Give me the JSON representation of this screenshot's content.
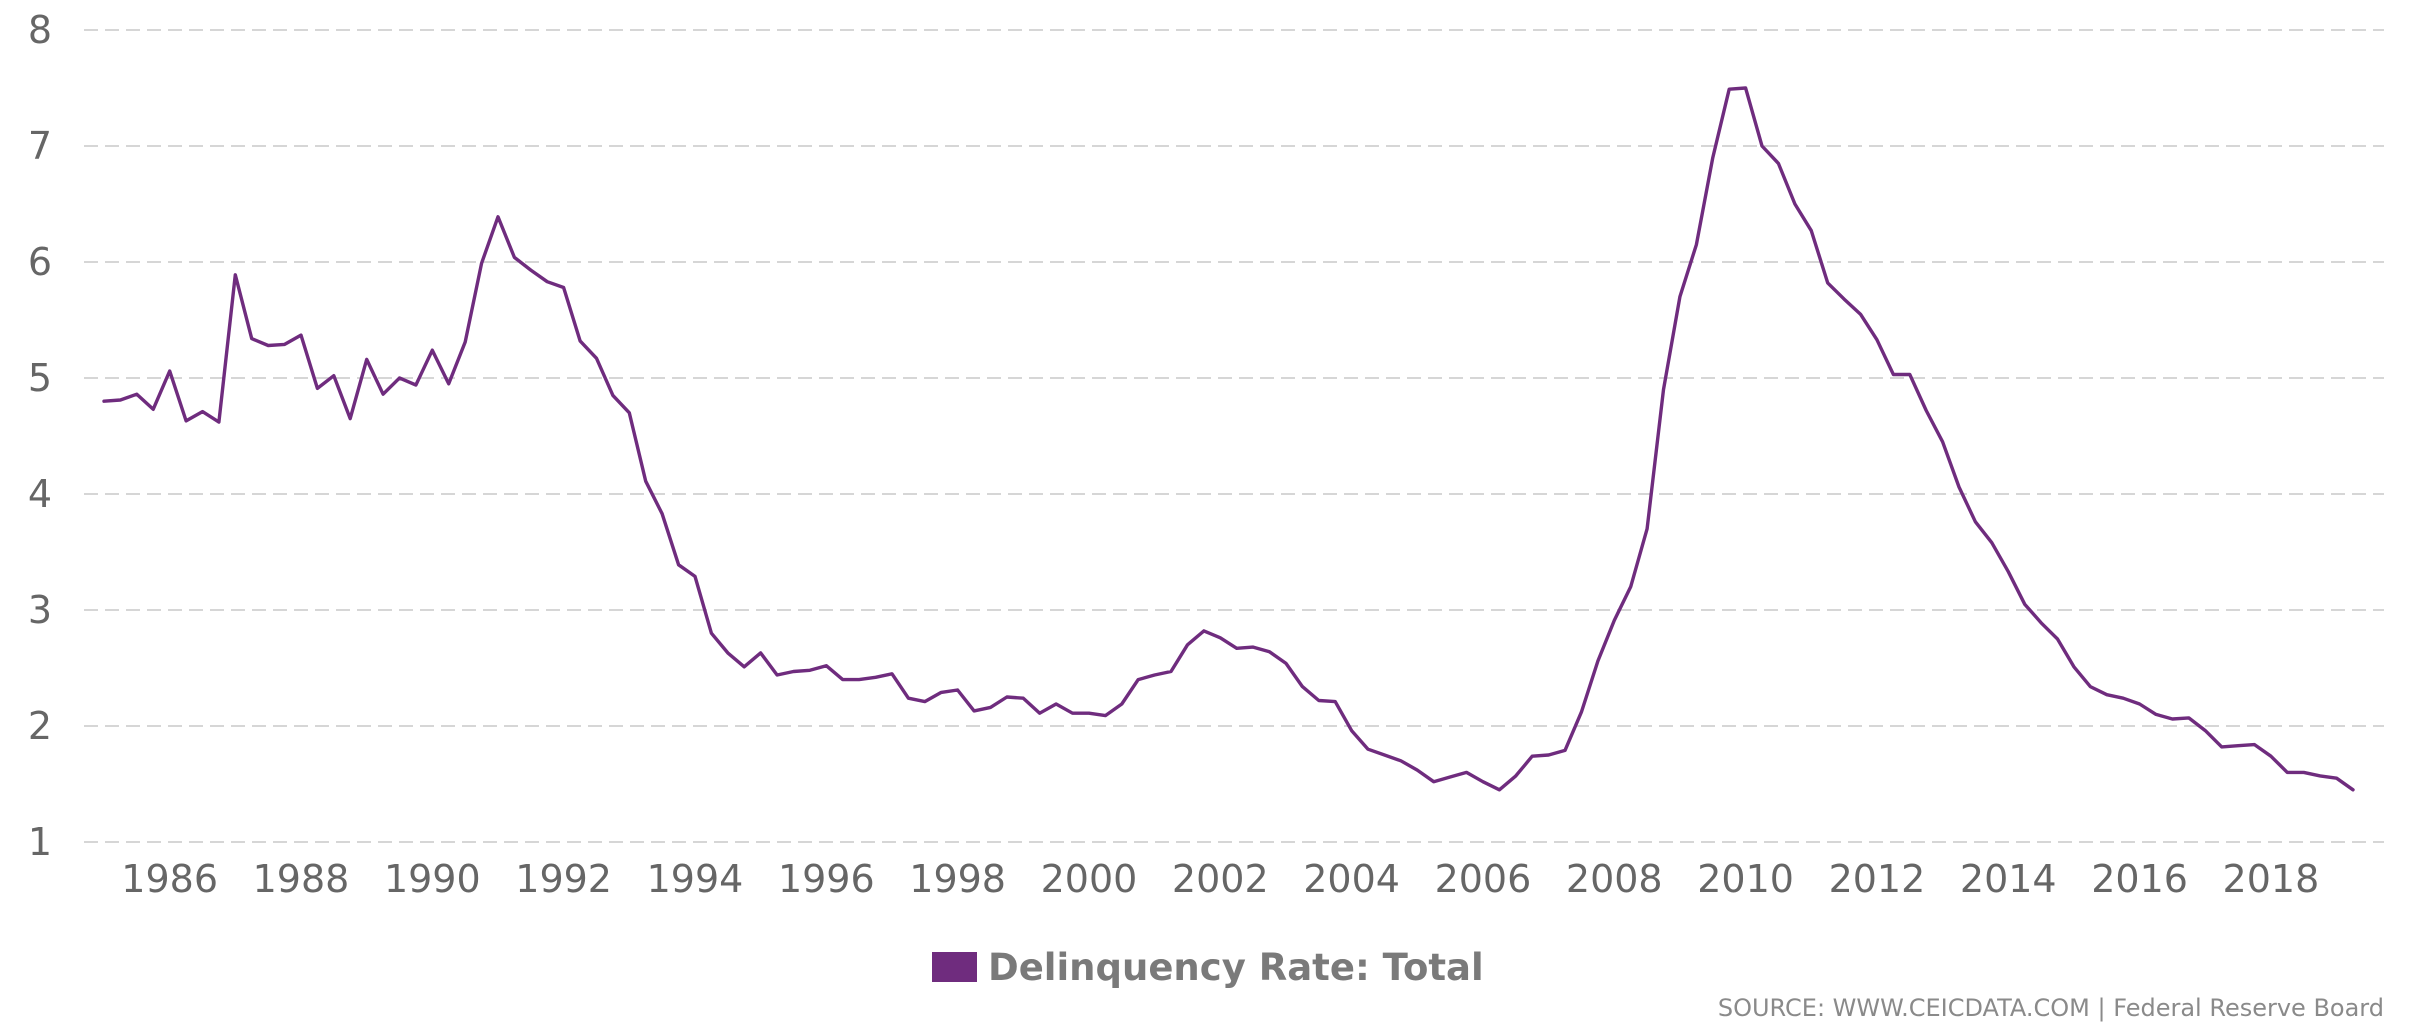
{
  "chart_data": {
    "type": "line",
    "x_frequency": "quarterly",
    "x_start": "1985-Q1",
    "x_end": "2019-Q3",
    "x_ticks": [
      "1986",
      "1988",
      "1990",
      "1992",
      "1994",
      "1996",
      "1998",
      "2000",
      "2002",
      "2004",
      "2006",
      "2008",
      "2010",
      "2012",
      "2014",
      "2016",
      "2018"
    ],
    "y_ticks": [
      "1",
      "2",
      "3",
      "4",
      "5",
      "6",
      "7",
      "8"
    ],
    "ylim": [
      1,
      8
    ],
    "grid": "horizontal dashed",
    "legend_position": "bottom-center",
    "series": [
      {
        "name": "Delinquency Rate: Total",
        "color": "#6f2c7e",
        "values": [
          4.8,
          4.81,
          4.86,
          4.73,
          5.06,
          4.63,
          4.71,
          4.62,
          5.89,
          5.34,
          5.28,
          5.29,
          5.37,
          4.91,
          5.02,
          4.65,
          5.16,
          4.86,
          5.0,
          4.94,
          5.24,
          4.95,
          5.31,
          5.99,
          6.39,
          6.04,
          5.93,
          5.83,
          5.78,
          5.32,
          5.17,
          4.85,
          4.7,
          4.11,
          3.83,
          3.39,
          3.29,
          2.8,
          2.63,
          2.51,
          2.63,
          2.44,
          2.47,
          2.48,
          2.52,
          2.4,
          2.4,
          2.42,
          2.45,
          2.24,
          2.21,
          2.29,
          2.31,
          2.13,
          2.16,
          2.25,
          2.24,
          2.11,
          2.19,
          2.11,
          2.11,
          2.09,
          2.19,
          2.4,
          2.44,
          2.47,
          2.7,
          2.82,
          2.76,
          2.67,
          2.68,
          2.64,
          2.54,
          2.34,
          2.22,
          2.21,
          1.96,
          1.8,
          1.75,
          1.7,
          1.62,
          1.52,
          1.56,
          1.6,
          1.52,
          1.45,
          1.57,
          1.74,
          1.75,
          1.79,
          2.12,
          2.56,
          2.91,
          3.2,
          3.7,
          4.9,
          5.7,
          6.15,
          6.9,
          7.49,
          7.5,
          7.0,
          6.85,
          6.5,
          6.27,
          5.82,
          5.68,
          5.55,
          5.33,
          5.03,
          5.03,
          4.72,
          4.45,
          4.06,
          3.76,
          3.58,
          3.33,
          3.05,
          2.89,
          2.75,
          2.51,
          2.34,
          2.27,
          2.24,
          2.19,
          2.1,
          2.06,
          2.07,
          1.96,
          1.82,
          1.83,
          1.84,
          1.74,
          1.6,
          1.6,
          1.57,
          1.55,
          1.45
        ]
      }
    ]
  },
  "source": "SOURCE: WWW.CEICDATA.COM | Federal Reserve Board"
}
